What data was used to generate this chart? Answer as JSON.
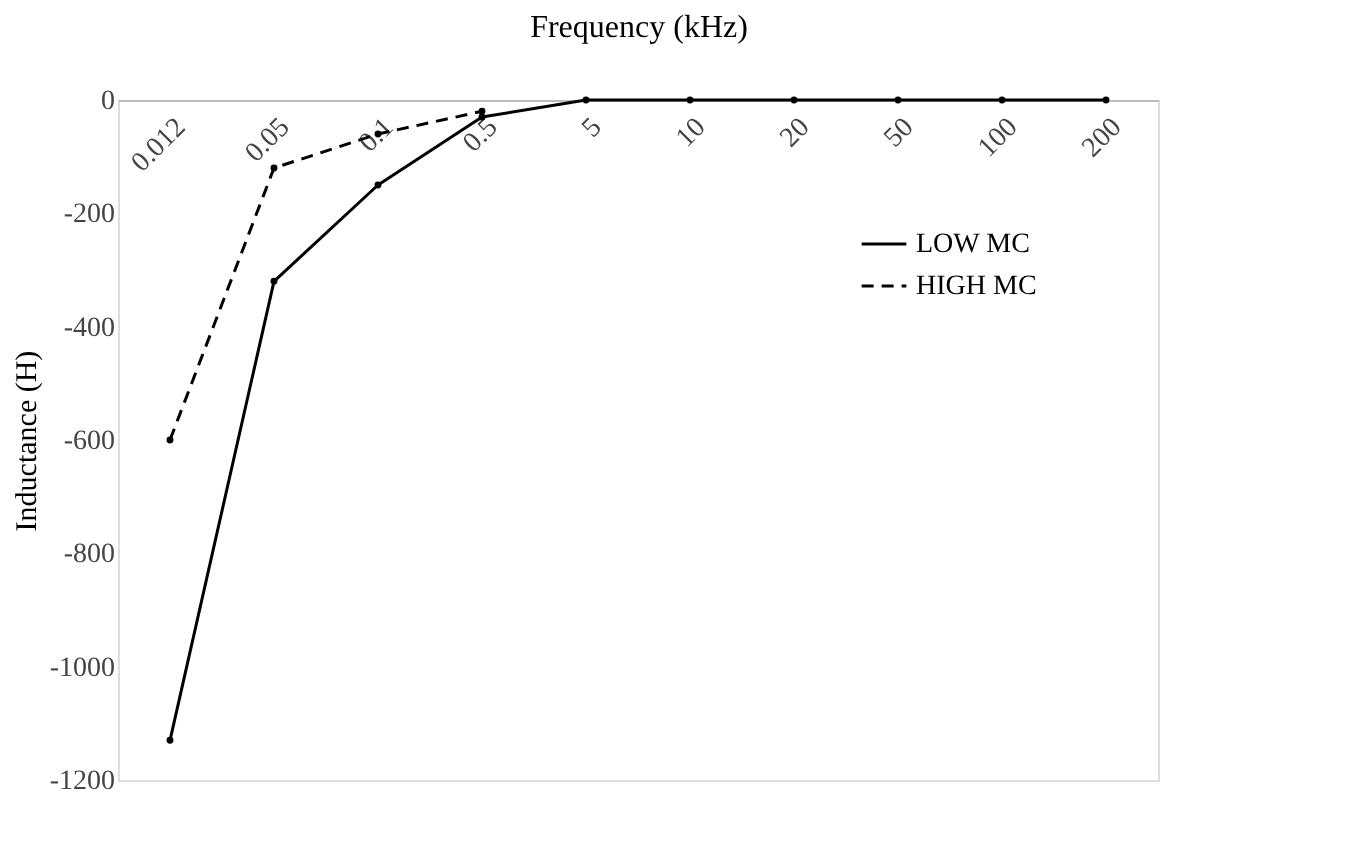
{
  "chart_data": {
    "type": "line",
    "xlabel": "Frequency (kHz)",
    "ylabel": "Inductance (H)",
    "categories": [
      "0.012",
      "0.05",
      "0.1",
      "0.5",
      "5",
      "10",
      "20",
      "50",
      "100",
      "200"
    ],
    "ylim": [
      -1200,
      0
    ],
    "yticks": [
      -1200,
      -1000,
      -800,
      -600,
      -400,
      -200,
      0
    ],
    "grid": false,
    "legend": "top right",
    "marker": "circle",
    "series": [
      {
        "name": "LOW MC",
        "color": "#000000",
        "line_style": "solid",
        "values": [
          -1130,
          -320,
          -150,
          -30,
          0,
          0,
          0,
          0,
          0,
          0
        ]
      },
      {
        "name": "HIGH MC",
        "color": "#000000",
        "line_style": "dashed",
        "values": [
          -600,
          -120,
          -60,
          -20,
          null,
          null,
          null,
          null,
          null,
          null
        ]
      }
    ]
  }
}
